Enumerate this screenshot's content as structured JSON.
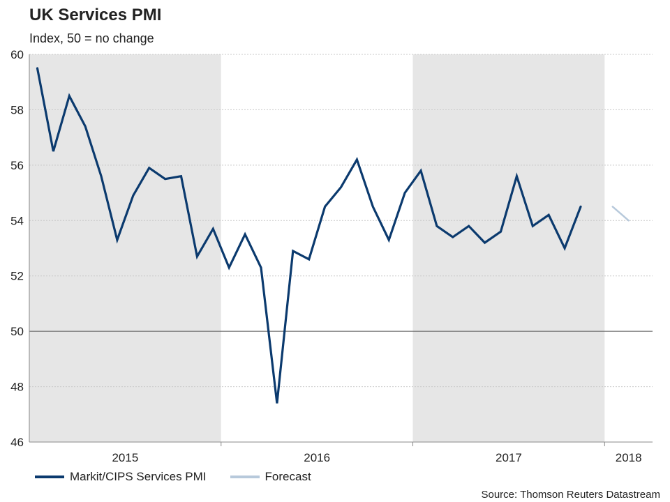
{
  "title": "UK Services PMI",
  "subtitle": "Index, 50 = no change",
  "source": "Source: Thomson Reuters Datastream",
  "colors": {
    "series": "#0b3a6e",
    "forecast": "#b7c9db",
    "shade": "#e6e6e6",
    "grid": "#c8c8c8",
    "reference": "#555555"
  },
  "legend": [
    {
      "label": "Markit/CIPS Services PMI",
      "color": "#0b3a6e"
    },
    {
      "label": "Forecast",
      "color": "#b7c9db"
    }
  ],
  "chart_data": {
    "type": "line",
    "title": "UK Services PMI",
    "subtitle": "Index, 50 = no change",
    "ylim": [
      46,
      60
    ],
    "yticks": [
      46,
      48,
      50,
      52,
      54,
      56,
      58,
      60
    ],
    "xlim": [
      2015.0,
      2018.25
    ],
    "grid": true,
    "reference_line": 50,
    "year_labels": [
      {
        "label": "2015",
        "x": 2015.5
      },
      {
        "label": "2016",
        "x": 2016.5
      },
      {
        "label": "2017",
        "x": 2017.5
      },
      {
        "label": "2018",
        "x": 2018.125
      }
    ],
    "year_boundaries": [
      2016.0,
      2017.0,
      2018.0
    ],
    "shaded_years": [
      [
        2015.0,
        2016.0
      ],
      [
        2017.0,
        2018.0
      ]
    ],
    "series": [
      {
        "name": "Markit/CIPS Services PMI",
        "start": 2015.0417,
        "step": 0.0833333,
        "values": [
          59.5,
          56.5,
          58.5,
          57.4,
          55.6,
          53.3,
          54.9,
          55.9,
          55.5,
          55.6,
          52.7,
          53.7,
          52.3,
          53.5,
          52.3,
          47.4,
          52.9,
          52.6,
          54.5,
          55.2,
          56.2,
          54.5,
          53.3,
          55.0,
          55.8,
          53.8,
          53.4,
          53.8,
          53.2,
          53.6,
          55.6,
          53.8,
          54.2,
          53.0,
          54.5
        ]
      },
      {
        "name": "Forecast",
        "start": 2018.0417,
        "step": 0.0833333,
        "values": [
          54.5,
          54.0
        ]
      }
    ]
  }
}
